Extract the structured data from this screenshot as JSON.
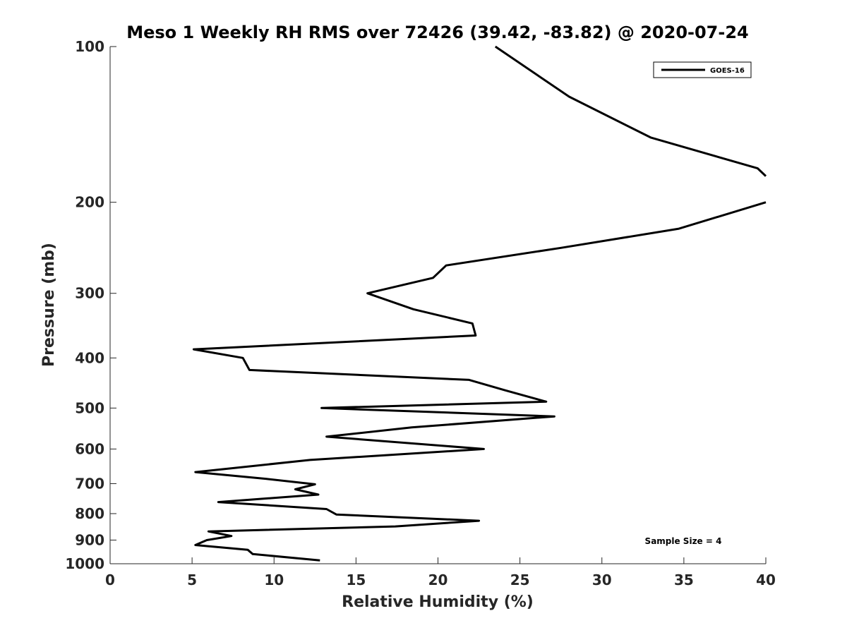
{
  "chart_data": {
    "type": "line",
    "title": "Meso 1 Weekly RH RMS over 72426 (39.42, -83.82) @ 2020-07-24",
    "xlabel": "Relative Humidity (%)",
    "ylabel": "Pressure (mb)",
    "xlim": [
      0,
      40
    ],
    "ylim": [
      100,
      1000
    ],
    "y_scale": "log",
    "y_reversed": true,
    "x_ticks": [
      "0",
      "5",
      "10",
      "15",
      "20",
      "25",
      "30",
      "35",
      "40"
    ],
    "y_ticks": [
      "100",
      "200",
      "300",
      "400",
      "500",
      "600",
      "700",
      "800",
      "900",
      "1000"
    ],
    "grid": false,
    "legend_position": "top-right",
    "annotation": "Sample Size = 4",
    "color": "#000000",
    "series": [
      {
        "name": "GOES-16",
        "points": [
          [
            23.5,
            100
          ],
          [
            28.0,
            125
          ],
          [
            33.0,
            150
          ],
          [
            39.5,
            172
          ],
          [
            40.0,
            178
          ],
          [
            null,
            190
          ],
          [
            40.0,
            200
          ],
          [
            34.7,
            225
          ],
          [
            27.5,
            245
          ],
          [
            20.5,
            265
          ],
          [
            19.7,
            280
          ],
          [
            15.7,
            300
          ],
          [
            18.5,
            322
          ],
          [
            22.1,
            343
          ],
          [
            22.3,
            362
          ],
          [
            5.1,
            385
          ],
          [
            8.1,
            400
          ],
          [
            8.5,
            422
          ],
          [
            21.9,
            441
          ],
          [
            24.1,
            462
          ],
          [
            26.6,
            486
          ],
          [
            12.9,
            500
          ],
          [
            27.1,
            519
          ],
          [
            18.4,
            545
          ],
          [
            13.2,
            568
          ],
          [
            22.8,
            600
          ],
          [
            12.2,
            630
          ],
          [
            5.2,
            665
          ],
          [
            9.5,
            685
          ],
          [
            12.5,
            702
          ],
          [
            11.3,
            718
          ],
          [
            12.7,
            735
          ],
          [
            6.6,
            760
          ],
          [
            13.2,
            784
          ],
          [
            13.8,
            803
          ],
          [
            22.5,
            826
          ],
          [
            17.4,
            847
          ],
          [
            6.0,
            866
          ],
          [
            7.4,
            884
          ],
          [
            5.9,
            900
          ],
          [
            5.2,
            920
          ],
          [
            8.4,
            940
          ],
          [
            8.7,
            958
          ],
          [
            12.8,
            985
          ]
        ]
      }
    ]
  }
}
